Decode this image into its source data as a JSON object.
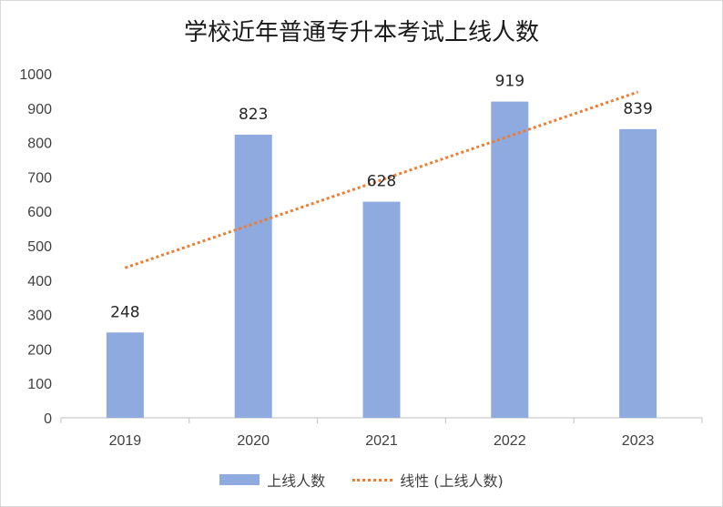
{
  "chart_data": {
    "type": "bar",
    "title": "学校近年普通专升本考试上线人数",
    "categories": [
      "2019",
      "2020",
      "2021",
      "2022",
      "2023"
    ],
    "series": [
      {
        "name": "上线人数",
        "values": [
          248,
          823,
          628,
          919,
          839
        ],
        "color": "#8eaadf"
      }
    ],
    "trendline": {
      "name": "线性 (上线人数)",
      "type": "linear",
      "color": "#ed7d31",
      "style": "dotted"
    },
    "ylim": [
      0,
      1000
    ],
    "yticks": [
      "0",
      "100",
      "200",
      "300",
      "400",
      "500",
      "600",
      "700",
      "800",
      "900",
      "1000"
    ],
    "data_labels": [
      "248",
      "823",
      "628",
      "919",
      "839"
    ],
    "grid": false,
    "legend_position": "bottom"
  }
}
